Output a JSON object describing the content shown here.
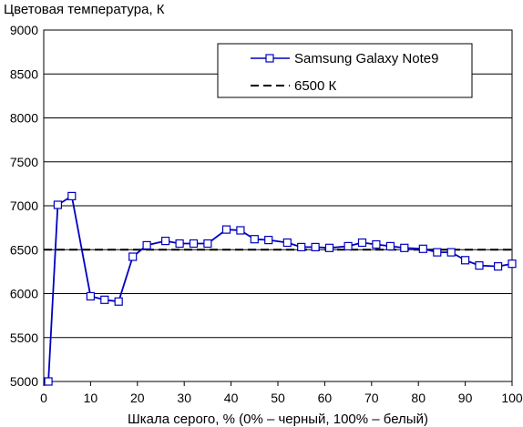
{
  "chart_data": {
    "type": "line",
    "title": "",
    "ylabel": "Цветовая температура, К",
    "xlabel": "Шкала серого, % (0% – черный, 100% – белый)",
    "xlim": [
      0,
      100
    ],
    "ylim": [
      5000,
      9000
    ],
    "xticks": [
      0,
      10,
      20,
      30,
      40,
      50,
      60,
      70,
      80,
      90,
      100
    ],
    "yticks": [
      5000,
      5500,
      6000,
      6500,
      7000,
      7500,
      8000,
      8500,
      9000
    ],
    "grid": "horizontal",
    "legend_position": "top-right",
    "series": [
      {
        "name": "Samsung Galaxy Note9",
        "color": "#0000c0",
        "marker": "open-square",
        "x": [
          1,
          3,
          6,
          10,
          13,
          16,
          19,
          22,
          26,
          29,
          32,
          35,
          39,
          42,
          45,
          48,
          52,
          55,
          58,
          61,
          65,
          68,
          71,
          74,
          77,
          81,
          84,
          87,
          90,
          93,
          97,
          100
        ],
        "y": [
          5000,
          7010,
          7110,
          5970,
          5930,
          5910,
          6420,
          6550,
          6600,
          6570,
          6570,
          6570,
          6730,
          6720,
          6620,
          6610,
          6580,
          6530,
          6530,
          6520,
          6540,
          6580,
          6560,
          6540,
          6520,
          6510,
          6470,
          6470,
          6380,
          6320,
          6310,
          6340
        ]
      }
    ],
    "reference_line": {
      "name": "6500 К",
      "y": 6500,
      "color": "#000000",
      "style": "dashed"
    }
  }
}
